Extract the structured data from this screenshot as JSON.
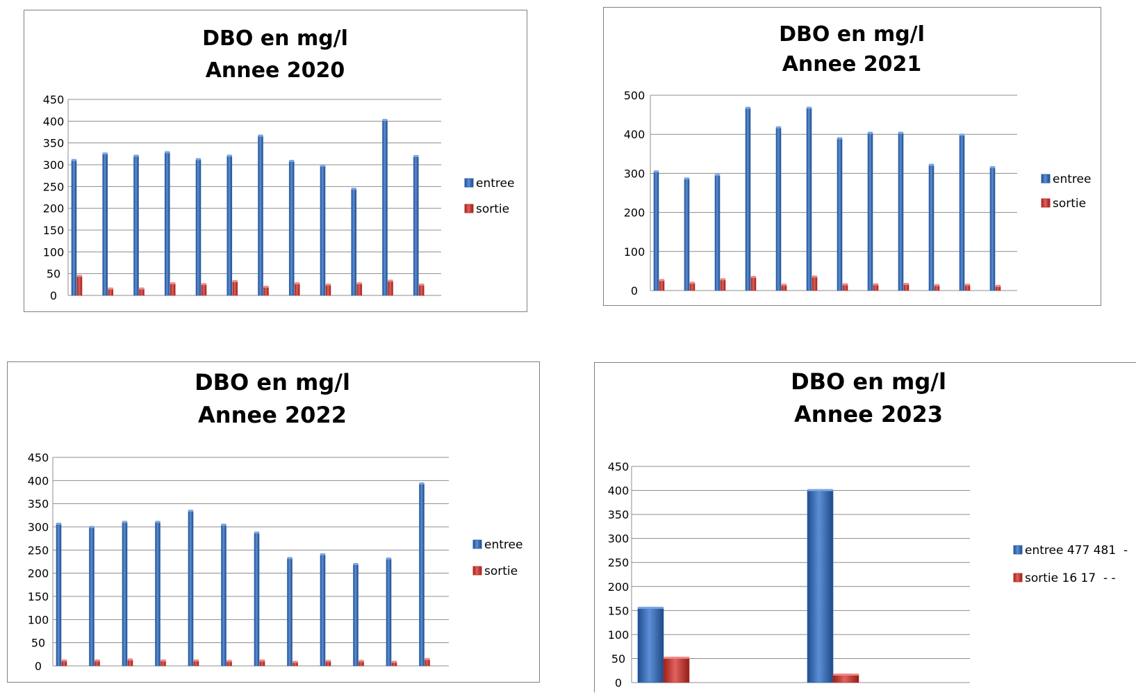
{
  "colors": {
    "entree": "#2e5fa8",
    "sortie": "#c0302b",
    "grid": "#8c8c8c",
    "border": "#7f7f7f"
  },
  "chart_data": [
    {
      "type": "bar",
      "title": [
        "DBO en mg/l",
        "Annee 2020"
      ],
      "ylim": [
        0,
        450
      ],
      "yticks": [
        0,
        50,
        100,
        150,
        200,
        250,
        300,
        350,
        400,
        450
      ],
      "grid": true,
      "legend": "right",
      "series": [
        {
          "name": "entree",
          "values": [
            310,
            325,
            320,
            328,
            312,
            320,
            366,
            308,
            297,
            244,
            402,
            319
          ]
        },
        {
          "name": "sortie",
          "values": [
            44,
            15,
            15,
            27,
            25,
            32,
            19,
            27,
            24,
            27,
            33,
            24
          ]
        }
      ]
    },
    {
      "type": "bar",
      "title": [
        "DBO en mg/l",
        "Annee 2021"
      ],
      "ylim": [
        0,
        500
      ],
      "yticks": [
        0,
        100,
        200,
        300,
        400,
        500
      ],
      "grid": true,
      "legend": "right",
      "series": [
        {
          "name": "entree",
          "values": [
            304,
            286,
            295,
            467,
            417,
            467,
            389,
            403,
            403,
            321,
            398,
            315
          ]
        },
        {
          "name": "sortie",
          "values": [
            26,
            19,
            28,
            34,
            14,
            35,
            15,
            15,
            16,
            13,
            14,
            11
          ]
        }
      ]
    },
    {
      "type": "bar",
      "title": [
        "DBO en mg/l",
        "Annee 2022"
      ],
      "ylim": [
        0,
        450
      ],
      "yticks": [
        0,
        50,
        100,
        150,
        200,
        250,
        300,
        350,
        400,
        450
      ],
      "grid": true,
      "legend": "right",
      "series": [
        {
          "name": "entree",
          "values": [
            306,
            299,
            310,
            310,
            334,
            304,
            287,
            232,
            240,
            219,
            231,
            393
          ]
        },
        {
          "name": "sortie",
          "values": [
            11,
            11,
            13,
            11,
            11,
            10,
            11,
            8,
            10,
            10,
            8,
            14
          ]
        }
      ]
    },
    {
      "type": "bar",
      "title": [
        "DBO en mg/l",
        "Annee 2023"
      ],
      "ylim": [
        0,
        450
      ],
      "yticks": [
        0,
        50,
        100,
        150,
        200,
        250,
        300,
        350,
        400,
        450
      ],
      "grid": true,
      "legend": "right",
      "series": [
        {
          "name": "entree 477 481  -",
          "values": [
            155,
            400
          ]
        },
        {
          "name": "sortie 16 17  - -",
          "values": [
            51,
            16
          ]
        }
      ]
    }
  ]
}
